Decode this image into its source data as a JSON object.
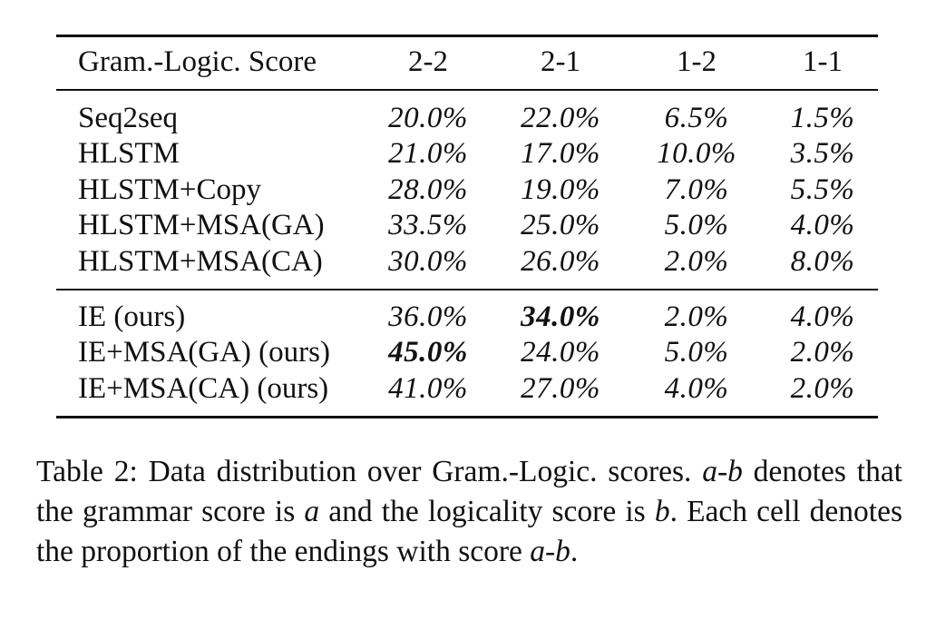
{
  "table": {
    "header": [
      "Gram.-Logic. Score",
      "2-2",
      "2-1",
      "1-2",
      "1-1"
    ],
    "group1": [
      {
        "name": "Seq2seq",
        "values": [
          "20.0%",
          "22.0%",
          "6.5%",
          "1.5%"
        ]
      },
      {
        "name": "HLSTM",
        "values": [
          "21.0%",
          "17.0%",
          "10.0%",
          "3.5%"
        ]
      },
      {
        "name": "HLSTM+Copy",
        "values": [
          "28.0%",
          "19.0%",
          "7.0%",
          "5.5%"
        ]
      },
      {
        "name": "HLSTM+MSA(GA)",
        "values": [
          "33.5%",
          "25.0%",
          "5.0%",
          "4.0%"
        ]
      },
      {
        "name": "HLSTM+MSA(CA)",
        "values": [
          "30.0%",
          "26.0%",
          "2.0%",
          "8.0%"
        ]
      }
    ],
    "group2": [
      {
        "name": "IE (ours)",
        "values": [
          "36.0%",
          "34.0%",
          "2.0%",
          "4.0%"
        ]
      },
      {
        "name": "IE+MSA(GA) (ours)",
        "values": [
          "45.0%",
          "24.0%",
          "5.0%",
          "2.0%"
        ]
      },
      {
        "name": "IE+MSA(CA) (ours)",
        "values": [
          "41.0%",
          "27.0%",
          "4.0%",
          "2.0%"
        ]
      }
    ]
  },
  "caption": {
    "label": "Table 2:",
    "t1": " Data distribution over Gram.-Logic. scores. ",
    "v_ab1": "a-b",
    "t2": " denotes that the grammar score is ",
    "v_a": "a",
    "t3": " and the logicality score is ",
    "v_b": "b",
    "t4": ". Each cell denotes the proportion of the endings with score ",
    "v_ab2": "a-b",
    "t5": "."
  }
}
